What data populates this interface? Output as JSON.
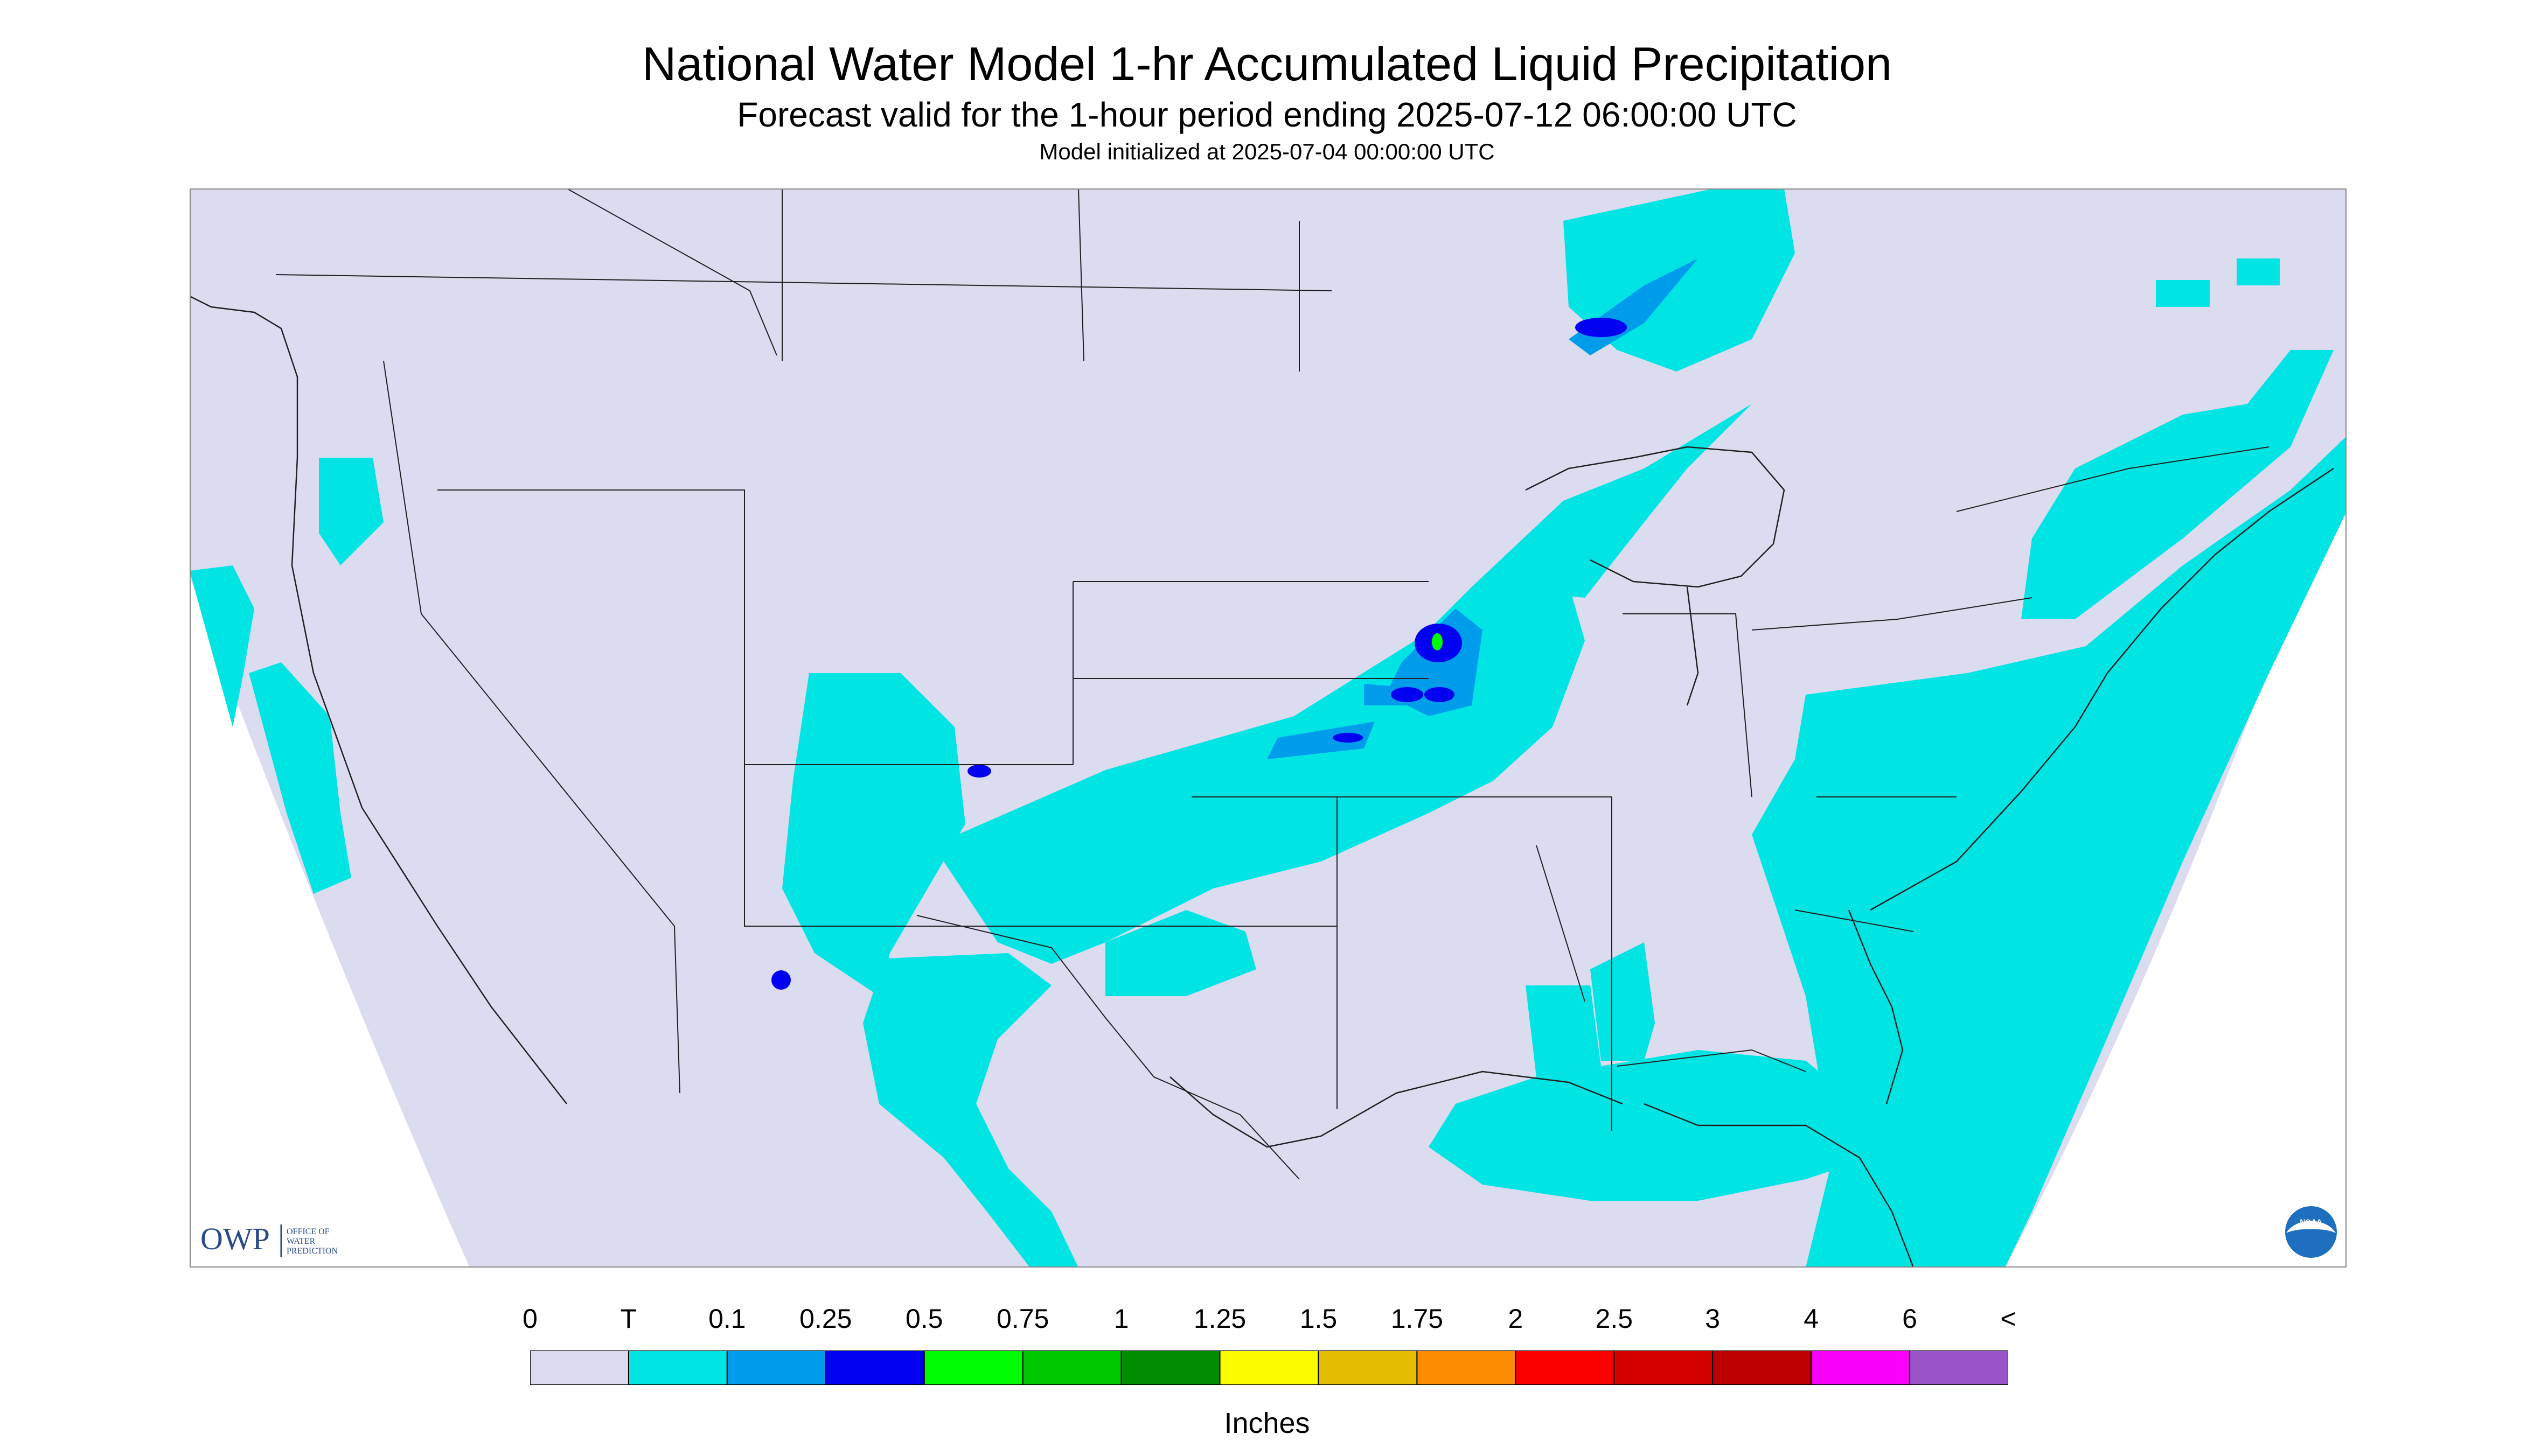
{
  "header": {
    "title": "National Water Model 1-hr Accumulated Liquid Precipitation",
    "subtitle": "Forecast valid for the 1-hour period ending 2025-07-12 06:00:00 UTC",
    "init_line": "Model initialized at 2025-07-04 00:00:00 UTC"
  },
  "map": {
    "region": "CONUS",
    "background_color": "#dcdcf0",
    "outside_domain_color": "#ffffff",
    "logos": {
      "owp_mark": "OWP",
      "owp_text_lines": [
        "OFFICE OF",
        "WATER",
        "PREDICTION"
      ],
      "noaa_mark": "NOAA"
    }
  },
  "legend": {
    "units": "Inches",
    "tick_labels": [
      "0",
      "T",
      "0.1",
      "0.25",
      "0.5",
      "0.75",
      "1",
      "1.25",
      "1.5",
      "1.75",
      "2",
      "2.5",
      "3",
      "4",
      "6",
      "<"
    ],
    "bins": [
      {
        "color": "#dcdcf0"
      },
      {
        "color": "#00e4e4"
      },
      {
        "color": "#009cec"
      },
      {
        "color": "#0000f0"
      },
      {
        "color": "#00fc00"
      },
      {
        "color": "#00c800"
      },
      {
        "color": "#008c00"
      },
      {
        "color": "#fcfc00"
      },
      {
        "color": "#e4bc00"
      },
      {
        "color": "#fc8c00"
      },
      {
        "color": "#fc0000"
      },
      {
        "color": "#d40000"
      },
      {
        "color": "#bc0000"
      },
      {
        "color": "#f800f8"
      },
      {
        "color": "#9854c8"
      }
    ]
  }
}
